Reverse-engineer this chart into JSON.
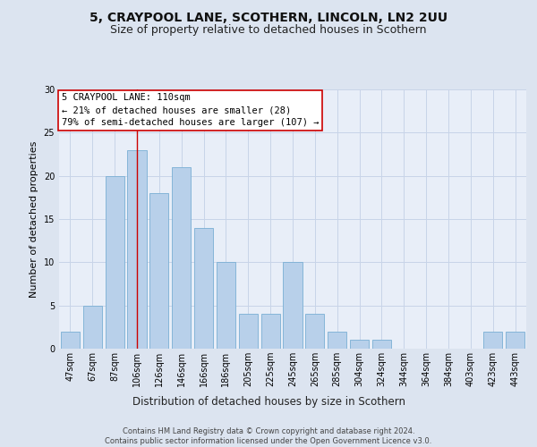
{
  "title_line1": "5, CRAYPOOL LANE, SCOTHERN, LINCOLN, LN2 2UU",
  "title_line2": "Size of property relative to detached houses in Scothern",
  "xlabel": "Distribution of detached houses by size in Scothern",
  "ylabel": "Number of detached properties",
  "bar_labels": [
    "47sqm",
    "67sqm",
    "87sqm",
    "106sqm",
    "126sqm",
    "146sqm",
    "166sqm",
    "186sqm",
    "205sqm",
    "225sqm",
    "245sqm",
    "265sqm",
    "285sqm",
    "304sqm",
    "324sqm",
    "344sqm",
    "364sqm",
    "384sqm",
    "403sqm",
    "423sqm",
    "443sqm"
  ],
  "bar_values": [
    2,
    5,
    20,
    23,
    18,
    21,
    14,
    10,
    4,
    4,
    10,
    4,
    2,
    1,
    1,
    0,
    0,
    0,
    0,
    2,
    2
  ],
  "bar_color": "#b8d0ea",
  "bar_edge_color": "#7aafd4",
  "highlight_bar_index": 3,
  "highlight_line_color": "#cc0000",
  "annotation_text": "5 CRAYPOOL LANE: 110sqm\n← 21% of detached houses are smaller (28)\n79% of semi-detached houses are larger (107) →",
  "annotation_box_color": "#ffffff",
  "annotation_box_edge_color": "#cc0000",
  "ylim": [
    0,
    30
  ],
  "yticks": [
    0,
    5,
    10,
    15,
    20,
    25,
    30
  ],
  "grid_color": "#c8d4e8",
  "background_color": "#dce4f0",
  "plot_area_color": "#e8eef8",
  "footer_text": "Contains HM Land Registry data © Crown copyright and database right 2024.\nContains public sector information licensed under the Open Government Licence v3.0.",
  "title_fontsize": 10,
  "subtitle_fontsize": 9,
  "tick_fontsize": 7,
  "ylabel_fontsize": 8,
  "xlabel_fontsize": 8.5,
  "annotation_fontsize": 7.5,
  "footer_fontsize": 6
}
